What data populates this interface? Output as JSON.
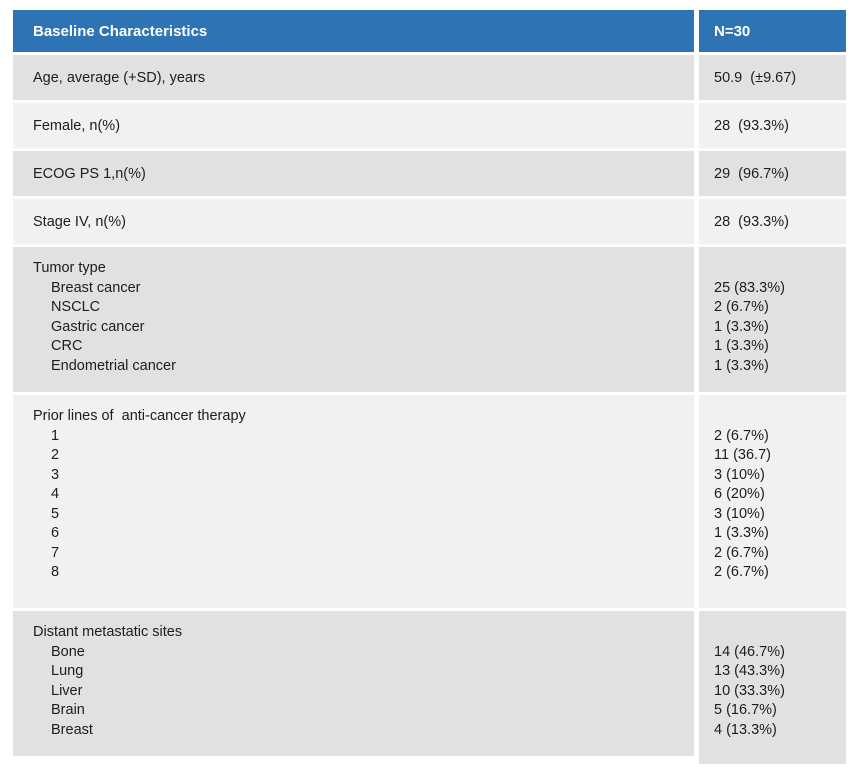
{
  "table": {
    "header": {
      "label": "Baseline Characteristics",
      "value": "N=30"
    },
    "rows": [
      {
        "type": "simple",
        "label": "Age, average (+SD), years",
        "value": "50.9  (±9.67)"
      },
      {
        "type": "simple",
        "label": "Female, n(%)",
        "value": "28  (93.3%)"
      },
      {
        "type": "simple",
        "label": "ECOG PS 1,n(%)",
        "value": "29  (96.7%)"
      },
      {
        "type": "simple",
        "label": "Stage IV, n(%)",
        "value": "28  (93.3%)"
      },
      {
        "type": "group",
        "label": "Tumor type",
        "items": [
          {
            "label": "Breast cancer",
            "value": "25 (83.3%)"
          },
          {
            "label": "NSCLC",
            "value": "2 (6.7%)"
          },
          {
            "label": "Gastric cancer",
            "value": "1 (3.3%)"
          },
          {
            "label": "CRC",
            "value": "1 (3.3%)"
          },
          {
            "label": "Endometrial cancer",
            "value": "1 (3.3%)"
          }
        ]
      },
      {
        "type": "group",
        "label": "Prior lines of  anti-cancer therapy",
        "items": [
          {
            "label": "1",
            "value": "2 (6.7%)"
          },
          {
            "label": "2",
            "value": "11 (36.7)"
          },
          {
            "label": "3",
            "value": "3 (10%)"
          },
          {
            "label": "4",
            "value": "6 (20%)"
          },
          {
            "label": "5",
            "value": "3 (10%)"
          },
          {
            "label": "6",
            "value": "1 (3.3%)"
          },
          {
            "label": "7",
            "value": "2 (6.7%)"
          },
          {
            "label": "8",
            "value": "2 (6.7%)"
          }
        ]
      },
      {
        "type": "group",
        "label": "Distant metastatic sites",
        "items": [
          {
            "label": "Bone",
            "value": "14 (46.7%)"
          },
          {
            "label": "Lung",
            "value": "13 (43.3%)"
          },
          {
            "label": "Liver",
            "value": "10 (33.3%)"
          },
          {
            "label": "Brain",
            "value": "5 (16.7%)"
          },
          {
            "label": "Breast",
            "value": "4 (13.3%)"
          }
        ]
      }
    ],
    "colors": {
      "header_bg": "#2e74b5",
      "header_text": "#ffffff",
      "row_dark": "#e1e1e1",
      "row_light": "#f1f1f1",
      "text": "#1d1d1d",
      "background": "#ffffff"
    }
  }
}
